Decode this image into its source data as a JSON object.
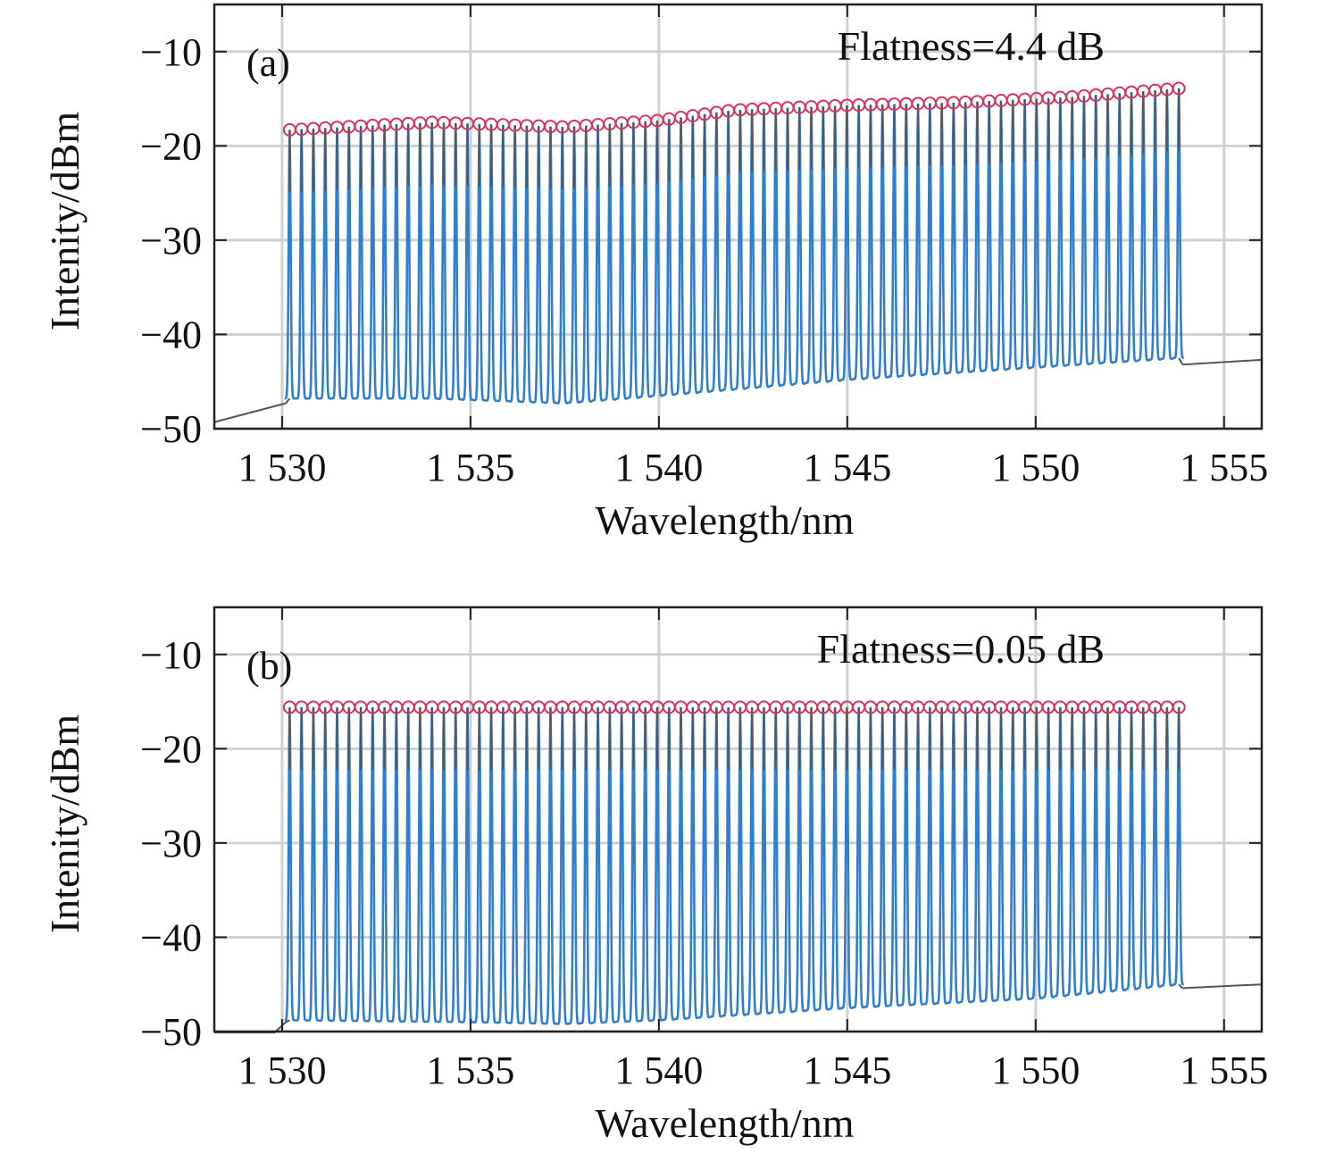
{
  "chart_data": [
    {
      "type": "line",
      "panel_label": "(a)",
      "annotation": "Flatness=4.4 dB",
      "xlabel": "Wavelength/nm",
      "ylabel": "Intenity/dBm",
      "xlim": [
        1528.2,
        1556
      ],
      "ylim": [
        -50,
        -5
      ],
      "xticks": [
        1530,
        1535,
        1540,
        1545,
        1550,
        1555
      ],
      "xtick_labels": [
        "1 530",
        "1 535",
        "1 540",
        "1 545",
        "1 550",
        "1 555"
      ],
      "yticks": [
        -10,
        -20,
        -30,
        -40,
        -50
      ],
      "ytick_labels": [
        "−10",
        "−20",
        "−30",
        "−40",
        "−50"
      ],
      "grid": true,
      "colors": {
        "spectrum": "#2f7fd0",
        "envelope": "#555555",
        "markers": "#d6335e"
      },
      "series": [
        {
          "name": "",
          "comb_lines": {
            "count": 76,
            "wavelength_start": 1530.2,
            "wavelength_end": 1553.8,
            "peak_dbm": [
              [
                1530.2,
                -18.3
              ],
              [
                1534,
                -17.5
              ],
              [
                1537.5,
                -18
              ],
              [
                1540,
                -17.3
              ],
              [
                1542,
                -16.2
              ],
              [
                1545,
                -15.7
              ],
              [
                1548,
                -15.4
              ],
              [
                1551,
                -14.8
              ],
              [
                1553.8,
                -13.9
              ]
            ],
            "floor_dbm": [
              [
                1530.2,
                -46.8
              ],
              [
                1534,
                -46.8
              ],
              [
                1537.5,
                -47.3
              ],
              [
                1540,
                -46.5
              ],
              [
                1545,
                -44.8
              ],
              [
                1550,
                -43.5
              ],
              [
                1553.8,
                -42.5
              ]
            ]
          },
          "out_of_band": {
            "left": [
              [
                1528.2,
                -49.3
              ],
              [
                1530.1,
                -47.3
              ]
            ],
            "right": [
              [
                1553.9,
                -43.2
              ],
              [
                1556,
                -42.7
              ]
            ]
          }
        }
      ]
    },
    {
      "type": "line",
      "panel_label": "(b)",
      "annotation": "Flatness=0.05 dB",
      "xlabel": "Wavelength/nm",
      "ylabel": "Intenity/dBm",
      "xlim": [
        1528.2,
        1556
      ],
      "ylim": [
        -50,
        -5
      ],
      "xticks": [
        1530,
        1535,
        1540,
        1545,
        1550,
        1555
      ],
      "xtick_labels": [
        "1 530",
        "1 535",
        "1 540",
        "1 545",
        "1 550",
        "1 555"
      ],
      "yticks": [
        -10,
        -20,
        -30,
        -40,
        -50
      ],
      "ytick_labels": [
        "−10",
        "−20",
        "−30",
        "−40",
        "−50"
      ],
      "grid": true,
      "colors": {
        "spectrum": "#2f7fd0",
        "envelope": "#555555",
        "markers": "#d6335e"
      },
      "series": [
        {
          "name": "",
          "comb_lines": {
            "count": 76,
            "wavelength_start": 1530.2,
            "wavelength_end": 1553.8,
            "peak_dbm": [
              [
                1530.2,
                -15.6
              ],
              [
                1553.8,
                -15.6
              ]
            ],
            "floor_dbm": [
              [
                1530.2,
                -48.8
              ],
              [
                1535,
                -49
              ],
              [
                1537.5,
                -49.2
              ],
              [
                1540,
                -48.8
              ],
              [
                1545,
                -47.5
              ],
              [
                1550,
                -46.5
              ],
              [
                1553.8,
                -45
              ]
            ]
          },
          "out_of_band": {
            "left": [
              [
                1528.2,
                -50.1
              ],
              [
                1529.8,
                -50.1
              ],
              [
                1530.1,
                -49
              ]
            ],
            "right": [
              [
                1553.9,
                -45.4
              ],
              [
                1556,
                -45
              ]
            ]
          }
        }
      ]
    }
  ]
}
